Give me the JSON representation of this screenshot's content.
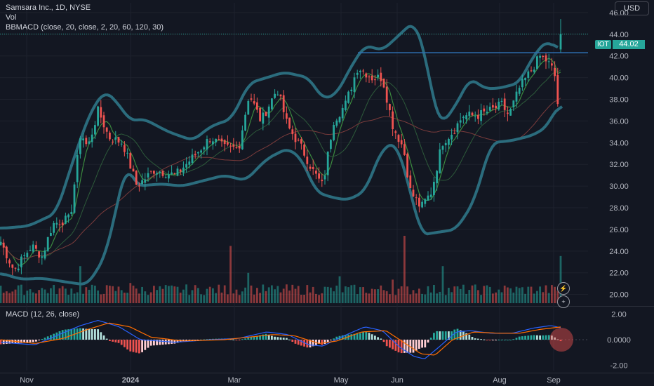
{
  "header": {
    "title": "Samsara Inc., 1D, NYSE",
    "volume_label": "Vol",
    "bb_label": "BBMACD (close, 20, close, 2, 20, 60, 120, 30)",
    "macd_label": "MACD (12, 26, close)",
    "currency": "USD"
  },
  "price_tag": {
    "symbol": "IOT",
    "value": "44.02"
  },
  "colors": {
    "background": "#131722",
    "up": "#26a69a",
    "down": "#ef5350",
    "bollinger": "#2b6c7d",
    "resistance": "#2f6fb3",
    "ma_fast": "#3b8a3e",
    "ma_mid": "#2d5a3a",
    "ma_slow": "#7a3b3b",
    "macd_line": "#2962ff",
    "signal_line": "#ff6d00"
  },
  "chart_data": {
    "type": "candlestick",
    "x_ticks": [
      "Nov",
      "2024",
      "Mar",
      "May",
      "Jun",
      "Aug",
      "Sep"
    ],
    "price_axis": {
      "ticks": [
        "46.00",
        "44.00",
        "42.00",
        "40.00",
        "38.00",
        "36.00",
        "34.00",
        "32.00",
        "30.00",
        "28.00",
        "26.00",
        "24.00",
        "22.00",
        "20.00"
      ],
      "range": [
        19.2,
        46.9
      ]
    },
    "macd_axis": {
      "ticks": [
        "2.00",
        "0.0000",
        "-2.00"
      ],
      "range": [
        -2.4,
        2.4
      ]
    },
    "resistance_level": 42.3,
    "close_keypoints": [
      {
        "x": 0,
        "y": 25.0
      },
      {
        "x": 20,
        "y": 22.2
      },
      {
        "x": 45,
        "y": 24.5
      },
      {
        "x": 60,
        "y": 23.5
      },
      {
        "x": 75,
        "y": 26.5
      },
      {
        "x": 100,
        "y": 27.0
      },
      {
        "x": 115,
        "y": 35.0
      },
      {
        "x": 125,
        "y": 33.5
      },
      {
        "x": 140,
        "y": 37.0
      },
      {
        "x": 155,
        "y": 34.5
      },
      {
        "x": 175,
        "y": 34.0
      },
      {
        "x": 195,
        "y": 30.0
      },
      {
        "x": 220,
        "y": 31.5
      },
      {
        "x": 250,
        "y": 31.0
      },
      {
        "x": 280,
        "y": 33.0
      },
      {
        "x": 300,
        "y": 34.5
      },
      {
        "x": 320,
        "y": 33.5
      },
      {
        "x": 340,
        "y": 33.5
      },
      {
        "x": 355,
        "y": 38.5
      },
      {
        "x": 372,
        "y": 36.0
      },
      {
        "x": 395,
        "y": 39.0
      },
      {
        "x": 410,
        "y": 35.5
      },
      {
        "x": 430,
        "y": 33.5
      },
      {
        "x": 445,
        "y": 31.5
      },
      {
        "x": 460,
        "y": 30.0
      },
      {
        "x": 475,
        "y": 36.0
      },
      {
        "x": 492,
        "y": 37.5
      },
      {
        "x": 510,
        "y": 41.0
      },
      {
        "x": 530,
        "y": 40.0
      },
      {
        "x": 545,
        "y": 40.0
      },
      {
        "x": 560,
        "y": 35.5
      },
      {
        "x": 575,
        "y": 33.5
      },
      {
        "x": 585,
        "y": 29.5
      },
      {
        "x": 600,
        "y": 28.0
      },
      {
        "x": 615,
        "y": 29.5
      },
      {
        "x": 630,
        "y": 34.0
      },
      {
        "x": 645,
        "y": 35.0
      },
      {
        "x": 660,
        "y": 36.5
      },
      {
        "x": 680,
        "y": 36.5
      },
      {
        "x": 700,
        "y": 37.0
      },
      {
        "x": 715,
        "y": 37.5
      },
      {
        "x": 725,
        "y": 36.5
      },
      {
        "x": 740,
        "y": 39.0
      },
      {
        "x": 755,
        "y": 40.5
      },
      {
        "x": 770,
        "y": 42.0
      },
      {
        "x": 780,
        "y": 41.5
      },
      {
        "x": 790,
        "y": 40.5
      },
      {
        "x": 795,
        "y": 37.5
      },
      {
        "x": 801,
        "y": 44.02
      }
    ],
    "upper_band_keypoints": [
      {
        "x": 0,
        "y": 26.1
      },
      {
        "x": 40,
        "y": 26.3
      },
      {
        "x": 80,
        "y": 27.5
      },
      {
        "x": 110,
        "y": 33.5
      },
      {
        "x": 130,
        "y": 37.0
      },
      {
        "x": 150,
        "y": 38.8
      },
      {
        "x": 170,
        "y": 37.5
      },
      {
        "x": 185,
        "y": 36.0
      },
      {
        "x": 205,
        "y": 36.2
      },
      {
        "x": 240,
        "y": 35.0
      },
      {
        "x": 275,
        "y": 34.2
      },
      {
        "x": 300,
        "y": 35.5
      },
      {
        "x": 330,
        "y": 36.2
      },
      {
        "x": 355,
        "y": 39.5
      },
      {
        "x": 380,
        "y": 40.0
      },
      {
        "x": 405,
        "y": 40.5
      },
      {
        "x": 440,
        "y": 40.0
      },
      {
        "x": 460,
        "y": 38.0
      },
      {
        "x": 480,
        "y": 38.5
      },
      {
        "x": 500,
        "y": 41.0
      },
      {
        "x": 520,
        "y": 43.0
      },
      {
        "x": 545,
        "y": 42.5
      },
      {
        "x": 570,
        "y": 44.0
      },
      {
        "x": 590,
        "y": 45.2
      },
      {
        "x": 605,
        "y": 42.5
      },
      {
        "x": 620,
        "y": 37.0
      },
      {
        "x": 630,
        "y": 35.7
      },
      {
        "x": 650,
        "y": 37.5
      },
      {
        "x": 670,
        "y": 40.0
      },
      {
        "x": 690,
        "y": 39.0
      },
      {
        "x": 710,
        "y": 39.0
      },
      {
        "x": 740,
        "y": 39.5
      },
      {
        "x": 760,
        "y": 42.0
      },
      {
        "x": 780,
        "y": 43.5
      },
      {
        "x": 795,
        "y": 42.5
      }
    ],
    "lower_band_keypoints": [
      {
        "x": 0,
        "y": 22.0
      },
      {
        "x": 30,
        "y": 21.4
      },
      {
        "x": 60,
        "y": 21.5
      },
      {
        "x": 90,
        "y": 21.2
      },
      {
        "x": 110,
        "y": 21.0
      },
      {
        "x": 125,
        "y": 20.9
      },
      {
        "x": 150,
        "y": 23.5
      },
      {
        "x": 180,
        "y": 32.0
      },
      {
        "x": 195,
        "y": 30.0
      },
      {
        "x": 230,
        "y": 30.2
      },
      {
        "x": 260,
        "y": 30.0
      },
      {
        "x": 290,
        "y": 30.5
      },
      {
        "x": 320,
        "y": 31.0
      },
      {
        "x": 350,
        "y": 30.5
      },
      {
        "x": 380,
        "y": 32.5
      },
      {
        "x": 410,
        "y": 33.5
      },
      {
        "x": 430,
        "y": 32.5
      },
      {
        "x": 450,
        "y": 29.5
      },
      {
        "x": 470,
        "y": 29.0
      },
      {
        "x": 495,
        "y": 28.7
      },
      {
        "x": 520,
        "y": 29.5
      },
      {
        "x": 545,
        "y": 33.5
      },
      {
        "x": 565,
        "y": 34.0
      },
      {
        "x": 585,
        "y": 29.5
      },
      {
        "x": 600,
        "y": 25.5
      },
      {
        "x": 620,
        "y": 25.7
      },
      {
        "x": 650,
        "y": 26.0
      },
      {
        "x": 675,
        "y": 28.5
      },
      {
        "x": 700,
        "y": 34.0
      },
      {
        "x": 730,
        "y": 34.2
      },
      {
        "x": 760,
        "y": 34.7
      },
      {
        "x": 780,
        "y": 35.5
      },
      {
        "x": 795,
        "y": 37.5
      },
      {
        "x": 801,
        "y": 37.3
      }
    ],
    "macd_keypoints": [
      {
        "x": 0,
        "y": -0.2
      },
      {
        "x": 50,
        "y": -0.4
      },
      {
        "x": 80,
        "y": 0.3
      },
      {
        "x": 115,
        "y": 1.1
      },
      {
        "x": 140,
        "y": 1.5
      },
      {
        "x": 170,
        "y": 1.0
      },
      {
        "x": 200,
        "y": 0.0
      },
      {
        "x": 250,
        "y": -0.2
      },
      {
        "x": 300,
        "y": 0.0
      },
      {
        "x": 340,
        "y": 0.1
      },
      {
        "x": 380,
        "y": 0.6
      },
      {
        "x": 410,
        "y": 0.4
      },
      {
        "x": 440,
        "y": -0.4
      },
      {
        "x": 460,
        "y": -0.5
      },
      {
        "x": 490,
        "y": 0.3
      },
      {
        "x": 520,
        "y": 1.0
      },
      {
        "x": 545,
        "y": 0.7
      },
      {
        "x": 570,
        "y": -0.6
      },
      {
        "x": 590,
        "y": -1.3
      },
      {
        "x": 605,
        "y": -1.5
      },
      {
        "x": 625,
        "y": -0.6
      },
      {
        "x": 650,
        "y": 0.6
      },
      {
        "x": 670,
        "y": 0.7
      },
      {
        "x": 700,
        "y": 0.5
      },
      {
        "x": 730,
        "y": 0.5
      },
      {
        "x": 760,
        "y": 0.9
      },
      {
        "x": 785,
        "y": 1.1
      },
      {
        "x": 801,
        "y": 0.9
      }
    ],
    "signal_keypoints": [
      {
        "x": 0,
        "y": 0.0
      },
      {
        "x": 50,
        "y": -0.3
      },
      {
        "x": 90,
        "y": 0.1
      },
      {
        "x": 125,
        "y": 0.8
      },
      {
        "x": 155,
        "y": 1.3
      },
      {
        "x": 185,
        "y": 1.0
      },
      {
        "x": 215,
        "y": 0.2
      },
      {
        "x": 260,
        "y": -0.1
      },
      {
        "x": 320,
        "y": 0.0
      },
      {
        "x": 390,
        "y": 0.4
      },
      {
        "x": 420,
        "y": 0.3
      },
      {
        "x": 455,
        "y": -0.3
      },
      {
        "x": 480,
        "y": -0.1
      },
      {
        "x": 515,
        "y": 0.6
      },
      {
        "x": 550,
        "y": 0.7
      },
      {
        "x": 575,
        "y": -0.2
      },
      {
        "x": 600,
        "y": -1.1
      },
      {
        "x": 620,
        "y": -1.2
      },
      {
        "x": 645,
        "y": 0.0
      },
      {
        "x": 675,
        "y": 0.6
      },
      {
        "x": 710,
        "y": 0.5
      },
      {
        "x": 740,
        "y": 0.5
      },
      {
        "x": 770,
        "y": 0.8
      },
      {
        "x": 801,
        "y": 1.0
      }
    ],
    "volume_spikes": [
      {
        "x": 115,
        "y": 0.55
      },
      {
        "x": 185,
        "y": 0.3
      },
      {
        "x": 330,
        "y": 0.85
      },
      {
        "x": 352,
        "y": 1.0
      },
      {
        "x": 355,
        "y": 0.45
      },
      {
        "x": 486,
        "y": 0.4
      },
      {
        "x": 560,
        "y": 0.35
      },
      {
        "x": 578,
        "y": 1.0
      },
      {
        "x": 630,
        "y": 0.55
      },
      {
        "x": 801,
        "y": 0.7
      }
    ]
  }
}
